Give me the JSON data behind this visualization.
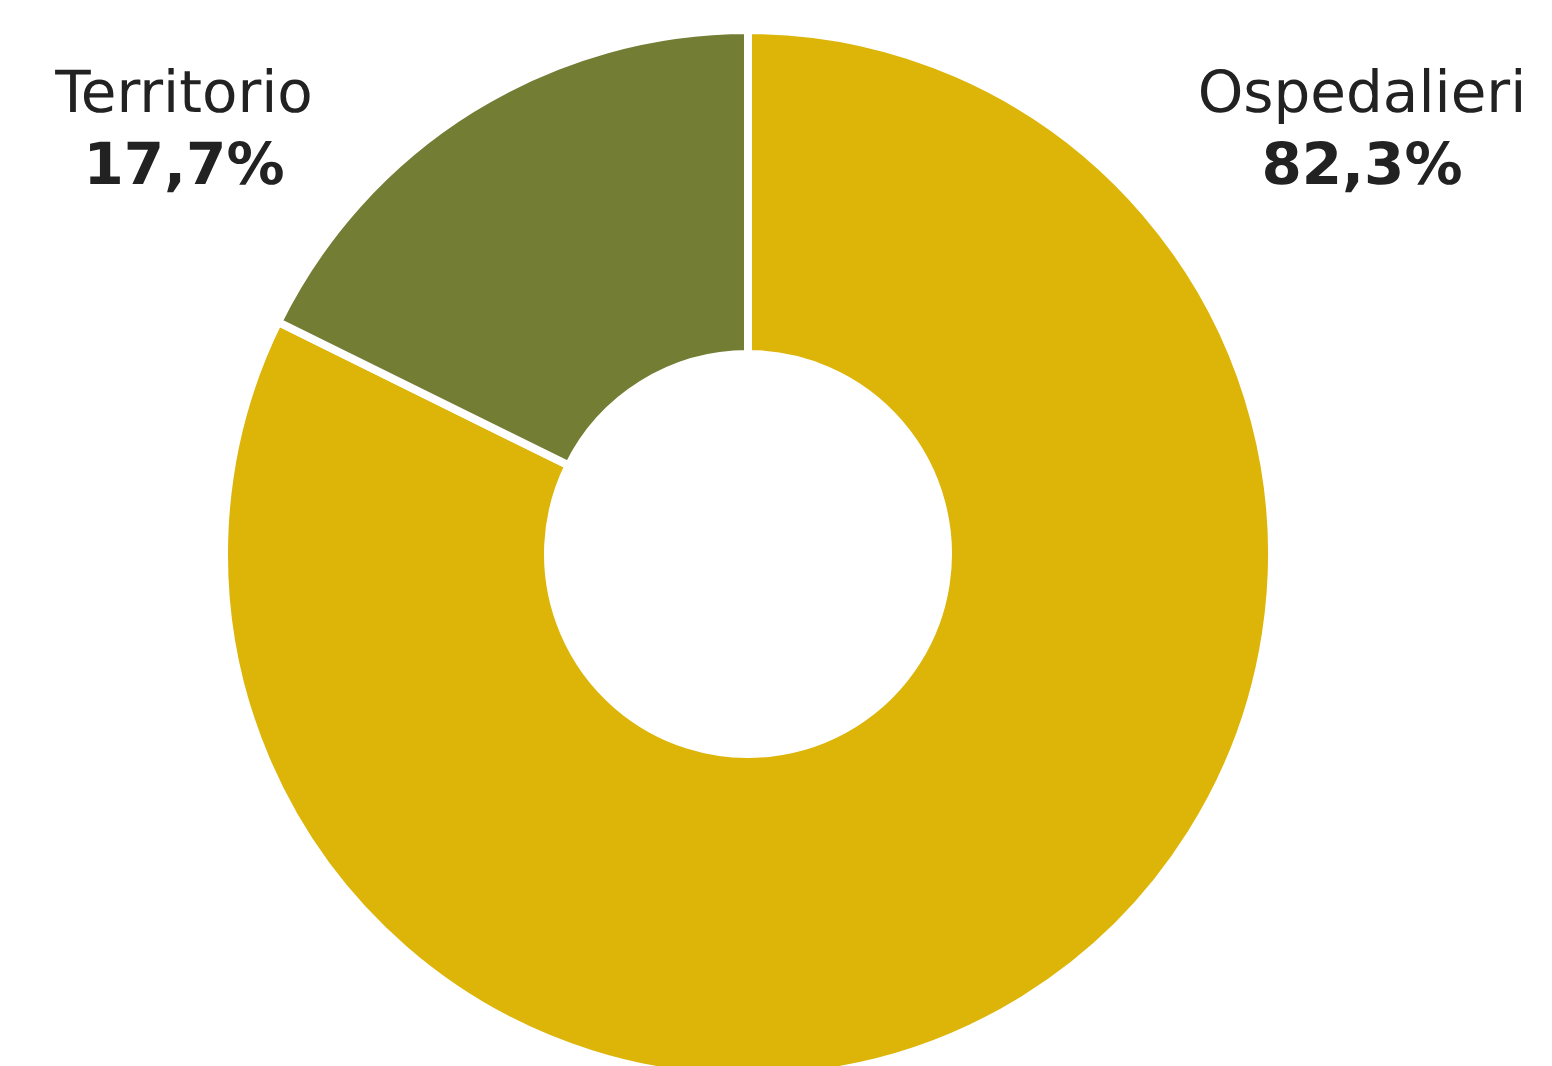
{
  "chart_data": {
    "type": "donut",
    "categories": [
      "Ospedalieri",
      "Territorio"
    ],
    "values": [
      82.3,
      17.7
    ],
    "colors": [
      "#ddb408",
      "#737d33"
    ],
    "value_labels": [
      "82,3%",
      "17,7%"
    ]
  }
}
